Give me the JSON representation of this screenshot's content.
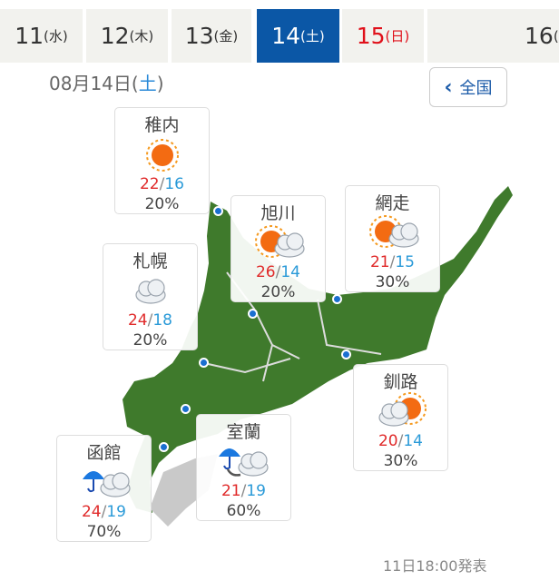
{
  "tabs": [
    {
      "day": "11",
      "dow": "(水)",
      "state": "normal"
    },
    {
      "day": "12",
      "dow": "(木)",
      "state": "normal"
    },
    {
      "day": "13",
      "dow": "(金)",
      "state": "normal"
    },
    {
      "day": "14",
      "dow": "(土)",
      "state": "active"
    },
    {
      "day": "15",
      "dow": "(日)",
      "state": "sunday"
    },
    {
      "day": "16",
      "dow": "(",
      "state": "normal"
    }
  ],
  "date": {
    "main": "08月14日(",
    "dow": "土",
    "close": ")"
  },
  "back": {
    "icon": "chevron-left-icon",
    "label": "全国"
  },
  "cities": [
    {
      "name": "稚内",
      "icon": "sunny",
      "hi": "22",
      "lo": "16",
      "pop": "20%"
    },
    {
      "name": "旭川",
      "icon": "sunny-then-cloudy",
      "hi": "26",
      "lo": "14",
      "pop": "20%"
    },
    {
      "name": "網走",
      "icon": "sunny-then-cloudy",
      "hi": "21",
      "lo": "15",
      "pop": "30%"
    },
    {
      "name": "札幌",
      "icon": "cloudy",
      "hi": "24",
      "lo": "18",
      "pop": "20%"
    },
    {
      "name": "釧路",
      "icon": "cloudy-then-sunny",
      "hi": "20",
      "lo": "14",
      "pop": "30%"
    },
    {
      "name": "室蘭",
      "icon": "rain-then-cloudy",
      "hi": "21",
      "lo": "19",
      "pop": "60%"
    },
    {
      "name": "函館",
      "icon": "rain-and-cloudy",
      "hi": "24",
      "lo": "19",
      "pop": "70%"
    }
  ],
  "footer": "11日18:00発表",
  "colors": {
    "active_tab": "#0b57a6",
    "sunday": "#e0101a",
    "high": "#e02a2a",
    "low": "#2a9ad8"
  }
}
